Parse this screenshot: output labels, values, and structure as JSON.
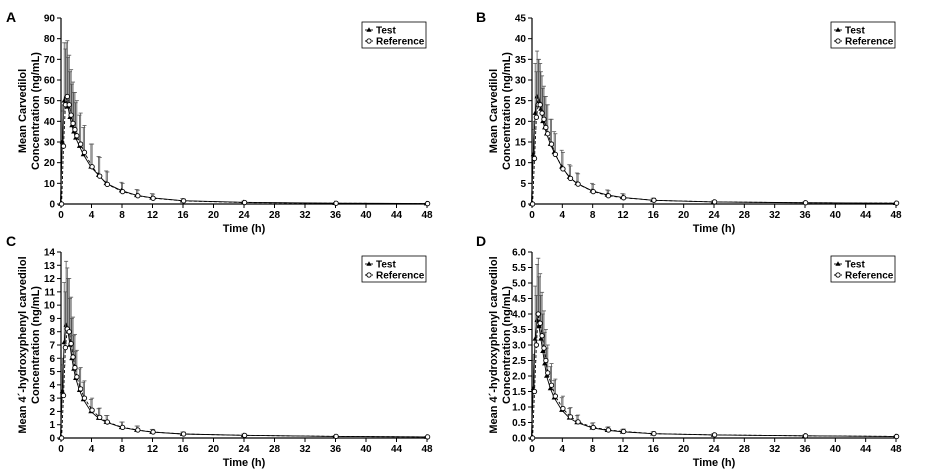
{
  "chart_data": [
    {
      "panel": "A",
      "type": "line",
      "xlabel": "Time (h)",
      "ylabel": [
        "Mean Carvedilol",
        "Concentration (ng/mL)"
      ],
      "xlim": [
        0,
        48
      ],
      "ylim": [
        0,
        90
      ],
      "x_ticks": [
        0,
        4,
        8,
        12,
        16,
        20,
        24,
        28,
        32,
        36,
        40,
        44,
        48
      ],
      "y_ticks": [
        0,
        10,
        20,
        30,
        40,
        50,
        60,
        70,
        80,
        90
      ],
      "legend_position": "top-right",
      "x": [
        0,
        0.25,
        0.5,
        0.75,
        1,
        1.25,
        1.5,
        1.75,
        2,
        2.5,
        3,
        4,
        5,
        6,
        8,
        10,
        12,
        16,
        24,
        36,
        48
      ],
      "series": [
        {
          "name": "Test",
          "marker": "triangle",
          "values": [
            0,
            30,
            50,
            52,
            47,
            42,
            38,
            35,
            32,
            28,
            24,
            18,
            14,
            10,
            6.5,
            4.2,
            3,
            1.6,
            0.8,
            0.4,
            0.2
          ],
          "errors": [
            0,
            18,
            28,
            26,
            24,
            22,
            20,
            19,
            17,
            15,
            13,
            11,
            9,
            6,
            4,
            2.8,
            2,
            1,
            0.6,
            0.3,
            0.2
          ]
        },
        {
          "name": "Reference",
          "marker": "circle",
          "values": [
            0,
            28,
            48,
            52,
            48,
            43,
            39,
            36,
            33,
            29,
            25,
            18,
            13.5,
            9.5,
            6,
            4,
            2.8,
            1.5,
            0.7,
            0.35,
            0.2
          ],
          "errors": [
            0,
            17,
            27,
            27,
            24,
            22,
            20,
            18,
            17,
            15,
            13,
            11,
            9,
            6,
            4,
            2.7,
            2,
            1,
            0.5,
            0.3,
            0.2
          ]
        }
      ]
    },
    {
      "panel": "B",
      "type": "line",
      "xlabel": "Time (h)",
      "ylabel": [
        "Mean Carvedilol",
        "Concentration (ng/mL)"
      ],
      "xlim": [
        0,
        48
      ],
      "ylim": [
        0,
        45
      ],
      "x_ticks": [
        0,
        4,
        8,
        12,
        16,
        20,
        24,
        28,
        32,
        36,
        40,
        44,
        48
      ],
      "y_ticks": [
        0,
        5,
        10,
        15,
        20,
        25,
        30,
        35,
        40,
        45
      ],
      "legend_position": "top-right",
      "x": [
        0,
        0.25,
        0.5,
        0.75,
        1,
        1.25,
        1.5,
        1.75,
        2,
        2.5,
        3,
        4,
        5,
        6,
        8,
        10,
        12,
        16,
        24,
        36,
        48
      ],
      "series": [
        {
          "name": "Test",
          "marker": "triangle",
          "values": [
            0,
            12,
            22,
            26,
            25,
            23,
            20,
            18.5,
            17,
            14.5,
            12.5,
            9,
            6.5,
            5,
            3.2,
            2.2,
            1.6,
            0.9,
            0.5,
            0.3,
            0.2
          ],
          "errors": [
            0,
            8,
            12,
            11,
            10,
            9,
            8,
            7.5,
            7,
            6,
            5,
            4,
            3,
            2.5,
            1.8,
            1.2,
            0.9,
            0.5,
            0.3,
            0.2,
            0.1
          ]
        },
        {
          "name": "Reference",
          "marker": "circle",
          "values": [
            0,
            11,
            21,
            24,
            24,
            22,
            20.5,
            18.5,
            17,
            14.5,
            12,
            8.5,
            6.2,
            4.8,
            3,
            2,
            1.5,
            0.9,
            0.5,
            0.3,
            0.2
          ],
          "errors": [
            0,
            7,
            11,
            11,
            10,
            9,
            8,
            7.5,
            7,
            6,
            5,
            4,
            3,
            2.5,
            1.7,
            1.2,
            0.9,
            0.5,
            0.3,
            0.2,
            0.1
          ]
        }
      ]
    },
    {
      "panel": "C",
      "type": "line",
      "xlabel": "Time (h)",
      "ylabel": [
        "Mean 4´-hydroxyphenyl carvedilol",
        "Concentration (ng/mL)"
      ],
      "xlim": [
        0,
        48
      ],
      "ylim": [
        0,
        14
      ],
      "x_ticks": [
        0,
        4,
        8,
        12,
        16,
        20,
        24,
        28,
        32,
        36,
        40,
        44,
        48
      ],
      "y_ticks": [
        0,
        1,
        2,
        3,
        4,
        5,
        6,
        7,
        8,
        9,
        10,
        11,
        12,
        13,
        14
      ],
      "legend_position": "top-right",
      "x": [
        0,
        0.25,
        0.5,
        0.75,
        1,
        1.25,
        1.5,
        1.75,
        2,
        2.5,
        3,
        4,
        5,
        6,
        8,
        10,
        12,
        16,
        24,
        36,
        48
      ],
      "series": [
        {
          "name": "Test",
          "marker": "triangle",
          "values": [
            0,
            3.5,
            7.2,
            8.5,
            8,
            7,
            6,
            5.2,
            4.5,
            3.6,
            2.9,
            2,
            1.5,
            1.2,
            0.8,
            0.6,
            0.45,
            0.3,
            0.2,
            0.12,
            0.08
          ],
          "errors": [
            0,
            2.5,
            4.5,
            4.8,
            4,
            3.5,
            3,
            2.5,
            2,
            1.6,
            1.3,
            0.9,
            0.7,
            0.5,
            0.4,
            0.3,
            0.2,
            0.15,
            0.1,
            0.06,
            0.04
          ]
        },
        {
          "name": "Reference",
          "marker": "circle",
          "values": [
            0,
            3.2,
            6.8,
            8.2,
            8,
            7.1,
            6.1,
            5.3,
            4.6,
            3.7,
            3,
            2.1,
            1.55,
            1.2,
            0.8,
            0.6,
            0.45,
            0.3,
            0.2,
            0.12,
            0.08
          ],
          "errors": [
            0,
            2.3,
            4.2,
            4.6,
            4,
            3.5,
            3,
            2.5,
            2,
            1.6,
            1.3,
            0.9,
            0.7,
            0.5,
            0.4,
            0.3,
            0.2,
            0.15,
            0.1,
            0.06,
            0.04
          ]
        }
      ]
    },
    {
      "panel": "D",
      "type": "line",
      "xlabel": "Time (h)",
      "ylabel": [
        "Mean 4´-hydroxyphenyl carvedilol",
        "Concentration (ng/mL)"
      ],
      "xlim": [
        0,
        48
      ],
      "ylim": [
        0,
        6
      ],
      "x_ticks": [
        0,
        4,
        8,
        12,
        16,
        20,
        24,
        28,
        32,
        36,
        40,
        44,
        48
      ],
      "y_ticks": [
        0,
        0.5,
        1,
        1.5,
        2,
        2.5,
        3,
        3.5,
        4,
        4.5,
        5,
        5.5,
        6
      ],
      "y_tick_labels": [
        "0.0",
        "0.5",
        "1.0",
        "1.5",
        "2.0",
        "2.5",
        "3.0",
        "3.5",
        "4.0",
        "4.5",
        "5.0",
        "5.5",
        "6.0"
      ],
      "legend_position": "top-right",
      "x": [
        0,
        0.25,
        0.5,
        0.75,
        1,
        1.25,
        1.5,
        1.75,
        2,
        2.5,
        3,
        4,
        5,
        6,
        8,
        10,
        12,
        16,
        24,
        36,
        48
      ],
      "series": [
        {
          "name": "Test",
          "marker": "triangle",
          "values": [
            0,
            1.6,
            3.2,
            3.8,
            3.6,
            3.2,
            2.8,
            2.4,
            2,
            1.6,
            1.3,
            0.9,
            0.65,
            0.5,
            0.33,
            0.25,
            0.2,
            0.14,
            0.1,
            0.07,
            0.05
          ],
          "errors": [
            0,
            1.1,
            1.7,
            1.8,
            1.6,
            1.4,
            1.2,
            1,
            0.9,
            0.7,
            0.55,
            0.4,
            0.3,
            0.22,
            0.15,
            0.1,
            0.08,
            0.06,
            0.04,
            0.03,
            0.02
          ]
        },
        {
          "name": "Reference",
          "marker": "circle",
          "values": [
            0,
            1.5,
            3,
            4,
            3.7,
            3.3,
            2.9,
            2.5,
            2.1,
            1.7,
            1.35,
            0.95,
            0.68,
            0.52,
            0.34,
            0.26,
            0.21,
            0.14,
            0.1,
            0.07,
            0.05
          ],
          "errors": [
            0,
            1,
            1.6,
            1.8,
            1.6,
            1.4,
            1.2,
            1,
            0.9,
            0.7,
            0.55,
            0.4,
            0.3,
            0.22,
            0.15,
            0.1,
            0.08,
            0.06,
            0.04,
            0.03,
            0.02
          ]
        }
      ]
    }
  ]
}
